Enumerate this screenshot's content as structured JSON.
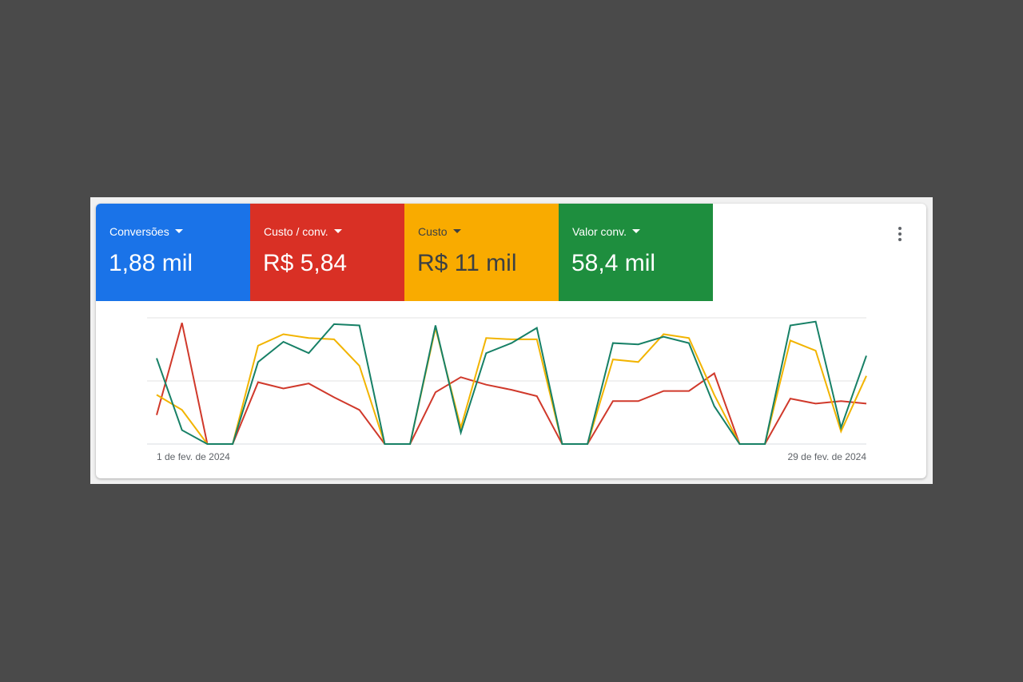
{
  "metrics": [
    {
      "label": "Conversões",
      "value": "1,88 mil",
      "color": "#1a73e8",
      "text_color": "#ffffff"
    },
    {
      "label": "Custo / conv.",
      "value": "R$ 5,84",
      "color": "#d93025",
      "text_color": "#ffffff"
    },
    {
      "label": "Custo",
      "value": "R$ 11 mil",
      "color": "#f9ab00",
      "text_color": "#3c4043"
    },
    {
      "label": "Valor conv.",
      "value": "58,4 mil",
      "color": "#1e8e3e",
      "text_color": "#ffffff"
    }
  ],
  "chart_data": {
    "type": "line",
    "categories": [
      "1 de fev. de 2024",
      null,
      null,
      null,
      null,
      null,
      null,
      null,
      null,
      null,
      null,
      null,
      null,
      null,
      null,
      null,
      null,
      null,
      null,
      null,
      null,
      null,
      null,
      null,
      null,
      null,
      null,
      null,
      "29 de fev. de 2024"
    ],
    "series": [
      {
        "color": "#d0392b",
        "values": [
          23,
          96,
          0,
          0,
          49,
          44,
          48,
          37,
          27,
          0,
          0,
          41,
          53,
          47,
          43,
          38,
          0,
          0,
          34,
          34,
          42,
          42,
          56,
          0,
          0,
          36,
          32,
          34,
          32
        ]
      },
      {
        "color": "#f2b400",
        "values": [
          39,
          27,
          0,
          0,
          78,
          87,
          84,
          83,
          62,
          0,
          0,
          92,
          13,
          84,
          83,
          83,
          0,
          0,
          67,
          65,
          87,
          84,
          39,
          0,
          0,
          82,
          74,
          10,
          54
        ]
      },
      {
        "color": "#178066",
        "values": [
          68,
          11,
          0,
          0,
          65,
          81,
          72,
          95,
          94,
          0,
          0,
          94,
          9,
          72,
          80,
          92,
          0,
          0,
          80,
          79,
          85,
          80,
          30,
          0,
          0,
          94,
          97,
          13,
          70
        ]
      }
    ],
    "ylim": [
      0,
      100
    ],
    "grid": true
  }
}
